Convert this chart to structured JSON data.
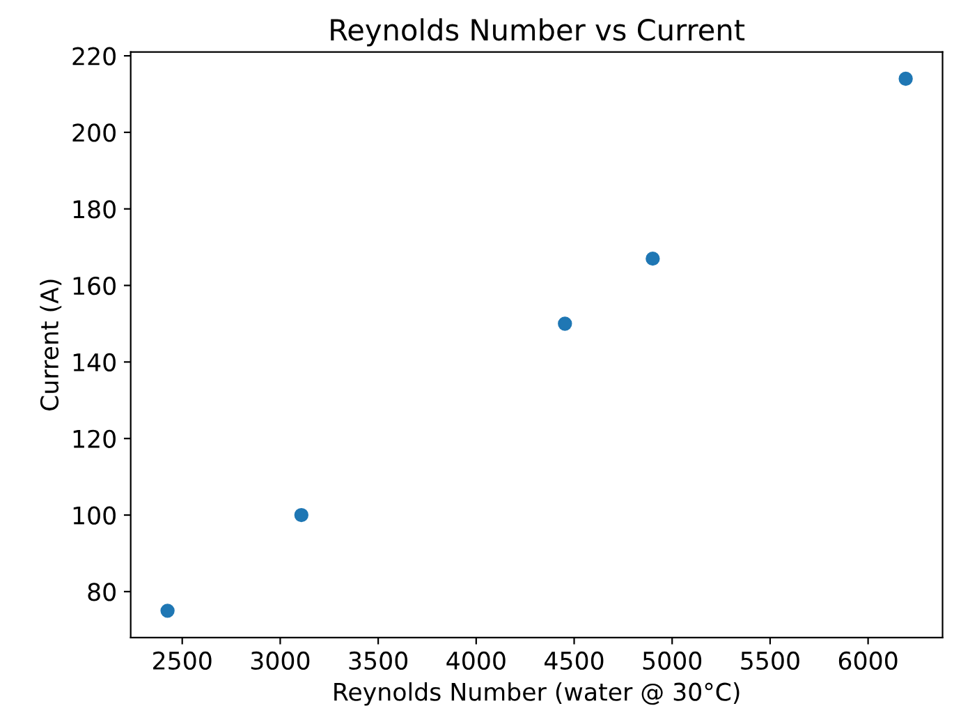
{
  "chart_data": {
    "type": "scatter",
    "title": "Reynolds Number vs Current",
    "xlabel": "Reynolds Number (water @ 30°C)",
    "ylabel": "Current (A)",
    "x": [
      2425,
      3108,
      4453,
      4901,
      6192
    ],
    "series": [
      {
        "color": "#1f77b4",
        "values": [
          75,
          100,
          150,
          167,
          214
        ]
      }
    ],
    "xlim": [
      2237,
      6380
    ],
    "xticks": [
      2500,
      3000,
      3500,
      4000,
      4500,
      5000,
      5500,
      6000
    ],
    "ylim": [
      68,
      221
    ],
    "yticks": [
      80,
      100,
      120,
      140,
      160,
      180,
      200,
      220
    ],
    "marker": "circle",
    "grid": false,
    "legend": false
  }
}
